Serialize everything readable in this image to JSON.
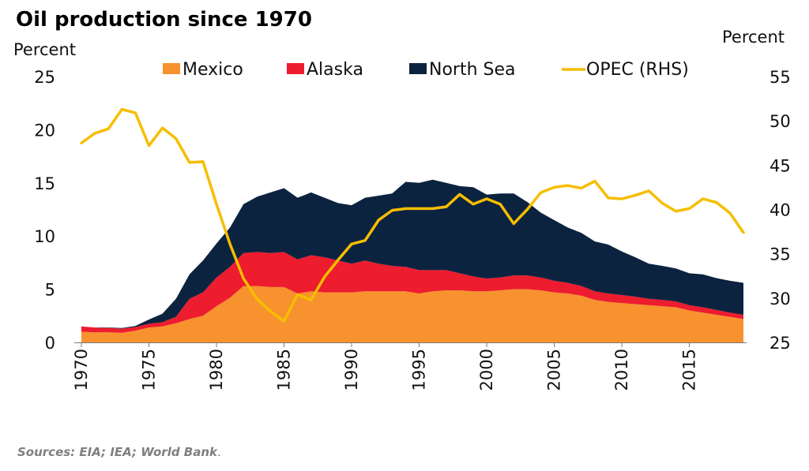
{
  "chart_data": {
    "type": "area",
    "title": "Oil production since 1970",
    "ylabel_left": "Percent",
    "ylabel_right": "Percent",
    "source": "Sources: EIA; IEA; World Bank",
    "source_suffix": ".",
    "x": [
      1970,
      1971,
      1972,
      1973,
      1974,
      1975,
      1976,
      1977,
      1978,
      1979,
      1980,
      1981,
      1982,
      1983,
      1984,
      1985,
      1986,
      1987,
      1988,
      1989,
      1990,
      1991,
      1992,
      1993,
      1994,
      1995,
      1996,
      1997,
      1998,
      1999,
      2000,
      2001,
      2002,
      2003,
      2004,
      2005,
      2006,
      2007,
      2008,
      2009,
      2010,
      2011,
      2012,
      2013,
      2014,
      2015,
      2016,
      2017,
      2018,
      2019
    ],
    "x_ticks": [
      "1970",
      "1975",
      "1980",
      "1985",
      "1990",
      "1995",
      "2000",
      "2005",
      "2010",
      "2015"
    ],
    "x_tick_values": [
      1970,
      1975,
      1980,
      1985,
      1990,
      1995,
      2000,
      2005,
      2010,
      2015
    ],
    "x_range": [
      1970,
      2019
    ],
    "y_left_ticks": [
      "0",
      "5",
      "10",
      "15",
      "20",
      "25"
    ],
    "y_left_range": [
      0,
      25
    ],
    "y_right_ticks": [
      "25",
      "30",
      "35",
      "40",
      "45",
      "50",
      "55"
    ],
    "y_right_range": [
      25,
      55
    ],
    "stacked_series": [
      {
        "name": "Mexico",
        "color": "#f7922e",
        "values": [
          1.0,
          0.95,
          0.95,
          0.9,
          1.1,
          1.4,
          1.5,
          1.8,
          2.2,
          2.5,
          3.4,
          4.2,
          5.3,
          5.3,
          5.2,
          5.2,
          4.6,
          4.8,
          4.7,
          4.7,
          4.7,
          4.8,
          4.8,
          4.8,
          4.8,
          4.6,
          4.8,
          4.9,
          4.9,
          4.8,
          4.8,
          4.9,
          5.0,
          5.0,
          4.9,
          4.7,
          4.6,
          4.4,
          4.0,
          3.8,
          3.7,
          3.6,
          3.5,
          3.4,
          3.3,
          3.0,
          2.8,
          2.6,
          2.4,
          2.2
        ]
      },
      {
        "name": "Alaska",
        "color": "#ed1c2e",
        "values": [
          0.5,
          0.45,
          0.4,
          0.4,
          0.35,
          0.35,
          0.4,
          0.6,
          1.9,
          2.2,
          2.7,
          2.9,
          3.1,
          3.2,
          3.2,
          3.3,
          3.2,
          3.4,
          3.3,
          3.0,
          2.7,
          2.9,
          2.6,
          2.4,
          2.3,
          2.2,
          2.0,
          1.9,
          1.6,
          1.4,
          1.2,
          1.2,
          1.3,
          1.3,
          1.2,
          1.1,
          1.0,
          0.9,
          0.8,
          0.8,
          0.75,
          0.7,
          0.6,
          0.6,
          0.55,
          0.5,
          0.5,
          0.45,
          0.4,
          0.4
        ]
      },
      {
        "name": "North Sea",
        "color": "#0c2340",
        "values": [
          0.0,
          0.0,
          0.05,
          0.05,
          0.1,
          0.4,
          0.8,
          1.7,
          2.3,
          3.0,
          3.2,
          3.7,
          4.6,
          5.2,
          5.7,
          6.0,
          5.8,
          5.9,
          5.6,
          5.4,
          5.5,
          5.9,
          6.4,
          6.8,
          8.0,
          8.2,
          8.5,
          8.2,
          8.2,
          8.4,
          7.9,
          7.9,
          7.7,
          6.9,
          6.1,
          5.7,
          5.2,
          5.0,
          4.7,
          4.6,
          4.1,
          3.7,
          3.3,
          3.2,
          3.1,
          3.0,
          3.1,
          3.0,
          3.0,
          3.0
        ]
      }
    ],
    "line_series": {
      "name": "OPEC (RHS)",
      "axis": "right",
      "color": "#f6be00",
      "values": [
        47.5,
        48.6,
        49.1,
        51.3,
        50.9,
        47.2,
        49.2,
        48.0,
        45.3,
        45.4,
        40.6,
        36.1,
        32.2,
        29.9,
        28.5,
        27.4,
        30.4,
        29.8,
        32.4,
        34.3,
        36.1,
        36.5,
        38.8,
        39.9,
        40.1,
        40.1,
        40.1,
        40.3,
        41.7,
        40.6,
        41.2,
        40.6,
        38.4,
        40.0,
        41.9,
        42.5,
        42.7,
        42.4,
        43.2,
        41.3,
        41.2,
        41.6,
        42.1,
        40.7,
        39.8,
        40.1,
        41.2,
        40.8,
        39.6,
        37.4
      ]
    }
  }
}
